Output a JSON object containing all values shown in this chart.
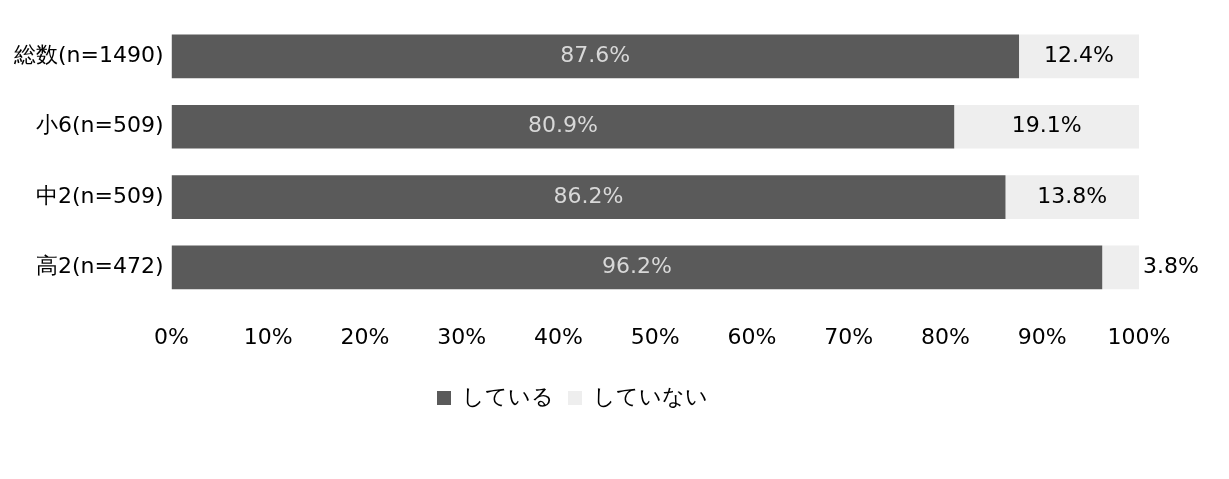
{
  "chart_data": {
    "type": "bar",
    "orientation": "horizontal",
    "stacked": true,
    "categories": [
      "総数(n=1490)",
      "小6(n=509)",
      "中2(n=509)",
      "高2(n=472)"
    ],
    "series": [
      {
        "name": "している",
        "color": "#5a5a5a",
        "values": [
          87.6,
          80.9,
          86.2,
          96.2
        ],
        "value_labels": [
          "87.6%",
          "80.9%",
          "86.2%",
          "96.2%"
        ]
      },
      {
        "name": "していない",
        "color": "#eeeeee",
        "values": [
          12.4,
          19.1,
          13.8,
          3.8
        ],
        "value_labels": [
          "12.4%",
          "19.1%",
          "13.8%",
          "3.8%"
        ]
      }
    ],
    "xlim": [
      0,
      100
    ],
    "xticks": [
      {
        "value": 0,
        "label": "0%"
      },
      {
        "value": 10,
        "label": "10%"
      },
      {
        "value": 20,
        "label": "20%"
      },
      {
        "value": 30,
        "label": "30%"
      },
      {
        "value": 40,
        "label": "40%"
      },
      {
        "value": 50,
        "label": "50%"
      },
      {
        "value": 60,
        "label": "60%"
      },
      {
        "value": 70,
        "label": "70%"
      },
      {
        "value": 80,
        "label": "80%"
      },
      {
        "value": 90,
        "label": "90%"
      },
      {
        "value": 100,
        "label": "100%"
      }
    ],
    "grid": false,
    "legend": "bottom"
  }
}
